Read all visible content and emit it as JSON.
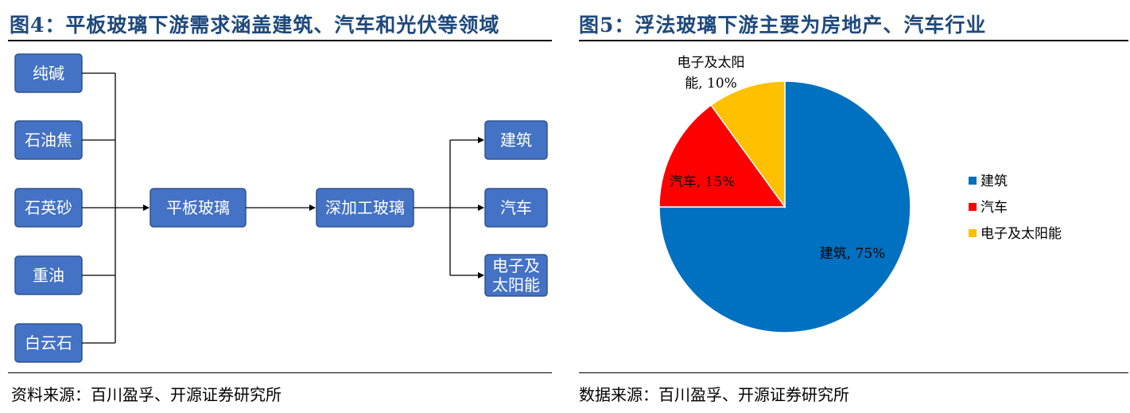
{
  "fig4": {
    "title": "图4：平板玻璃下游需求涵盖建筑、汽车和光伏等领域",
    "source": "资料来源：百川盈孚、开源证券研究所",
    "nodes": {
      "raw": [
        "纯碱",
        "石油焦",
        "石英砂",
        "重油",
        "白云石"
      ],
      "flat": "平板玻璃",
      "deep": "深加工玻璃",
      "apps": [
        [
          "建筑"
        ],
        [
          "汽车"
        ],
        [
          "电子及",
          "太阳能"
        ]
      ]
    },
    "colors": {
      "box_fill": "#4472c4",
      "box_stroke": "#2f528f",
      "box_text": "#ffffff"
    }
  },
  "fig5": {
    "title": "图5：浮法玻璃下游主要为房地产、汽车行业",
    "source": "数据来源：百川盈孚、开源证券研究所",
    "chart_data": {
      "type": "pie",
      "labels": [
        "建筑",
        "汽车",
        "电子及太阳能"
      ],
      "values": [
        75,
        15,
        10
      ],
      "data_labels": [
        "建筑, 75%",
        "汽车, 15%",
        "电子及太阳能, 10%"
      ],
      "colors": [
        "#0070c0",
        "#ff0000",
        "#ffc000"
      ],
      "legend_position": "right"
    }
  }
}
